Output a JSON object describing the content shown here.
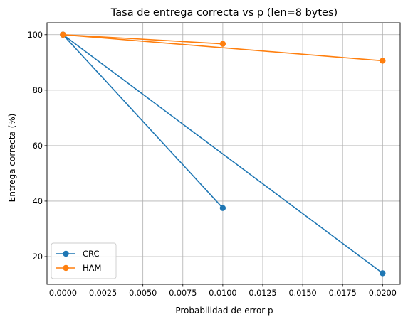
{
  "chart_data": {
    "type": "line",
    "title": "Tasa de entrega correcta vs p (len=8 bytes)",
    "xlabel": "Probabilidad de error p",
    "ylabel": "Entrega correcta (%)",
    "xlim": [
      -0.001,
      0.0211
    ],
    "ylim": [
      10,
      104.3
    ],
    "xticks": [
      0.0,
      0.0025,
      0.005,
      0.0075,
      0.01,
      0.0125,
      0.015,
      0.0175,
      0.02
    ],
    "xtick_labels": [
      "0.0000",
      "0.0025",
      "0.0050",
      "0.0075",
      "0.0100",
      "0.0125",
      "0.0150",
      "0.0175",
      "0.0200"
    ],
    "yticks": [
      20,
      40,
      60,
      80,
      100
    ],
    "ytick_labels": [
      "20",
      "40",
      "60",
      "80",
      "100"
    ],
    "grid": true,
    "legend_position": "bottom-left",
    "series": [
      {
        "name": "CRC",
        "color": "#1f77b4",
        "points": [
          {
            "x": 0.0,
            "y": 100.0
          },
          {
            "x": 0.01,
            "y": 37.5
          },
          {
            "x": 0.0,
            "y": 100.0
          },
          {
            "x": 0.02,
            "y": 14.0
          }
        ]
      },
      {
        "name": "HAM",
        "color": "#ff7f0e",
        "points": [
          {
            "x": 0.0,
            "y": 100.0
          },
          {
            "x": 0.01,
            "y": 96.7
          },
          {
            "x": 0.0,
            "y": 100.0
          },
          {
            "x": 0.02,
            "y": 90.6
          }
        ]
      }
    ]
  }
}
